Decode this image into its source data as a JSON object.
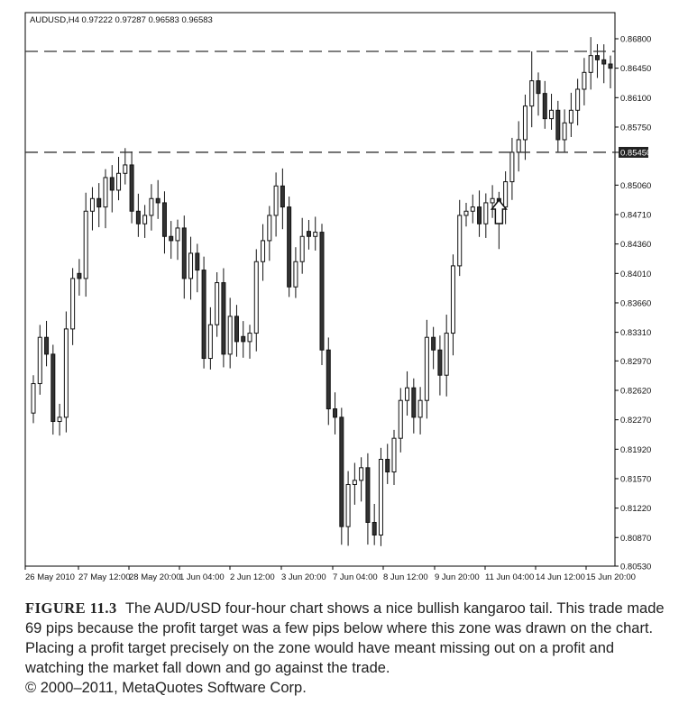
{
  "chart_data": {
    "type": "candlestick",
    "header": "AUDUSD,H4 0.97222 0.97287 0.96583 0.96583",
    "y_ticks": [
      "0.86800",
      "0.86450",
      "0.86100",
      "0.85750",
      "0.85450",
      "0.85060",
      "0.84710",
      "0.84360",
      "0.84010",
      "0.83660",
      "0.83310",
      "0.82970",
      "0.82620",
      "0.82270",
      "0.81920",
      "0.81570",
      "0.81220",
      "0.80870",
      "0.80530"
    ],
    "highlighted_ticks": [
      "0.86650",
      "0.85450"
    ],
    "x_ticks": [
      "26 May 2010",
      "27 May 12:00",
      "28 May 20:00",
      "1 Jun 04:00",
      "2 Jun 12:00",
      "3 Jun 20:00",
      "7 Jun 04:00",
      "8 Jun 12:00",
      "9 Jun 20:00",
      "11 Jun 04:00",
      "14 Jun 12:00",
      "15 Jun 20:00"
    ],
    "ylim": [
      0.8053,
      0.869
    ],
    "zone_lines": [
      0.8665,
      0.8545
    ],
    "arrow_bar": 71,
    "closes": [
      0.827,
      0.8325,
      0.8305,
      0.8225,
      0.823,
      0.8335,
      0.8395,
      0.8395,
      0.8475,
      0.849,
      0.848,
      0.8515,
      0.85,
      0.852,
      0.853,
      0.8475,
      0.846,
      0.847,
      0.849,
      0.8485,
      0.8445,
      0.844,
      0.8455,
      0.8395,
      0.8425,
      0.8405,
      0.83,
      0.834,
      0.839,
      0.8305,
      0.835,
      0.832,
      0.832,
      0.833,
      0.8415,
      0.844,
      0.847,
      0.8505,
      0.848,
      0.8385,
      0.8415,
      0.8445,
      0.8445,
      0.845,
      0.831,
      0.824,
      0.823,
      0.81,
      0.815,
      0.8155,
      0.817,
      0.8105,
      0.809,
      0.818,
      0.8165,
      0.8205,
      0.825,
      0.8265,
      0.823,
      0.825,
      0.8325,
      0.831,
      0.828,
      0.833,
      0.841,
      0.847,
      0.8475,
      0.848,
      0.846,
      0.8485,
      0.849,
      0.848,
      0.851,
      0.8545,
      0.856,
      0.86,
      0.863,
      0.8615,
      0.8585,
      0.8595,
      0.856,
      0.858,
      0.8595,
      0.862,
      0.864,
      0.866,
      0.8655,
      0.865,
      0.8645
    ]
  },
  "caption": {
    "figure_label": "FIGURE 11.3",
    "text": "The AUD/USD four-hour chart shows a nice bullish kangaroo tail. This trade made 69 pips because the profit target was a few pips below where this zone was drawn on the chart. Placing a profit target precisely on the zone would have meant missing out on a profit and watching the market fall down and go against the trade.",
    "copyright": "© 2000–2011, MetaQuotes Software Corp."
  }
}
